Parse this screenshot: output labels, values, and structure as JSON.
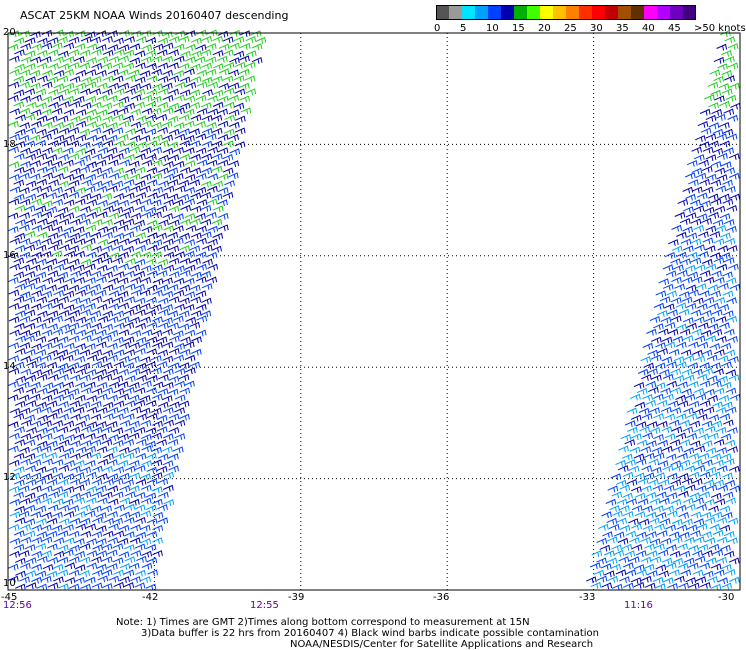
{
  "title": "ASCAT 25KM NOAA Winds 20160407 descending",
  "legend": {
    "labels": [
      "0",
      "5",
      "10",
      "15",
      "20",
      "25",
      "30",
      "35",
      "40",
      "45",
      ">50 knots"
    ],
    "colors": [
      "#555555",
      "#9a9a9a",
      "#00e5ff",
      "#00a0ff",
      "#0040ff",
      "#0000b0",
      "#00b000",
      "#40ff00",
      "#ffff00",
      "#ffc000",
      "#ff7f00",
      "#ff3000",
      "#ff0000",
      "#c00000",
      "#a05000",
      "#603000",
      "#ff00ff",
      "#b000ff",
      "#7000c0",
      "#400080"
    ]
  },
  "lat_labels": [
    "20",
    "18",
    "16",
    "14",
    "12",
    "10"
  ],
  "lon_labels": [
    "-45",
    "-42",
    "-39",
    "-36",
    "-33",
    "-30"
  ],
  "time_labels": [
    "12:56",
    "12:55",
    "11:16"
  ],
  "notes": [
    "Note: 1) Times are GMT 2)Times along bottom correspond to measurement at 15N",
    "3)Data buffer is 22 hrs from 20160407 4) Black wind barbs indicate possible contamination",
    "NOAA/NESDIS/Center for Satellite Applications and Research"
  ],
  "swaths": [
    {
      "name": "west-swath",
      "lon_top": [
        -45,
        -39.7
      ],
      "lon_bottom": [
        -45,
        -42
      ],
      "lat_range": [
        10,
        20
      ]
    },
    {
      "name": "east-swath",
      "lon_top": [
        -30.4,
        -30
      ],
      "lon_bottom": [
        -33.2,
        -30
      ],
      "lat_range": [
        10,
        20
      ]
    }
  ]
}
